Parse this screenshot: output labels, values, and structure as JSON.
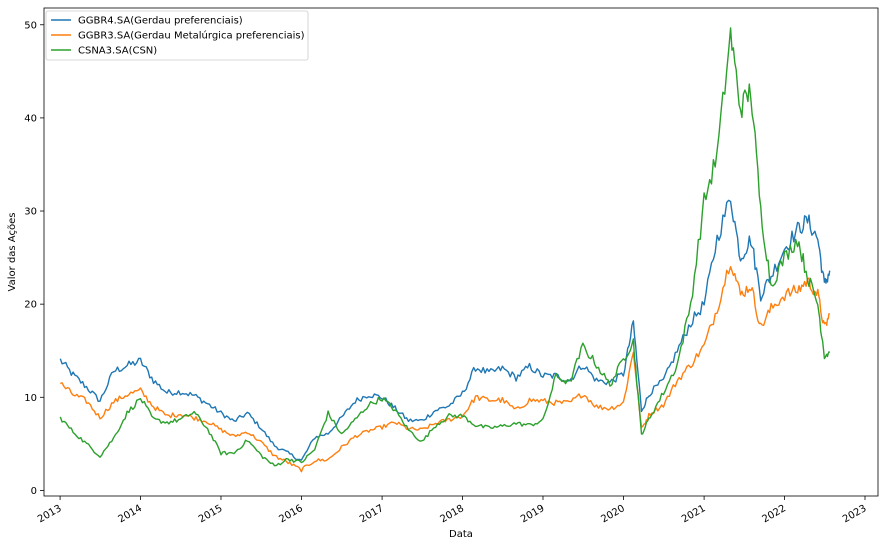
{
  "chart_data": {
    "type": "line",
    "xlabel": "Data",
    "ylabel": "Valor das Ações",
    "x_ticks": [
      "2013",
      "2014",
      "2015",
      "2016",
      "2017",
      "2018",
      "2019",
      "2020",
      "2021",
      "2022",
      "2023"
    ],
    "y_ticks": [
      0,
      10,
      20,
      30,
      40,
      50
    ],
    "xlim": [
      "2012-10-20",
      "2023-03-01"
    ],
    "ylim": [
      -0.6,
      51.8
    ],
    "legend_position": "top-left",
    "series": [
      {
        "name": "GGBR4.SA(Gerdau preferenciais)",
        "color": "#1f77b4",
        "x": [
          "2013-01-02",
          "2013-03-01",
          "2013-05-01",
          "2013-07-01",
          "2013-09-01",
          "2013-11-01",
          "2014-01-01",
          "2014-03-01",
          "2014-05-01",
          "2014-07-01",
          "2014-09-01",
          "2014-11-01",
          "2015-01-01",
          "2015-03-01",
          "2015-05-01",
          "2015-07-01",
          "2015-09-01",
          "2015-11-01",
          "2016-01-01",
          "2016-03-01",
          "2016-05-01",
          "2016-07-01",
          "2016-09-01",
          "2016-11-01",
          "2017-01-01",
          "2017-03-01",
          "2017-05-01",
          "2017-07-01",
          "2017-09-01",
          "2017-11-01",
          "2018-01-01",
          "2018-03-01",
          "2018-05-01",
          "2018-07-01",
          "2018-09-01",
          "2018-11-01",
          "2019-01-01",
          "2019-03-01",
          "2019-05-01",
          "2019-07-01",
          "2019-09-01",
          "2019-11-01",
          "2020-01-01",
          "2020-02-15",
          "2020-03-23",
          "2020-05-01",
          "2020-07-01",
          "2020-09-01",
          "2020-11-01",
          "2021-01-01",
          "2021-03-01",
          "2021-05-01",
          "2021-06-15",
          "2021-08-01",
          "2021-09-15",
          "2021-11-01",
          "2022-01-01",
          "2022-03-01",
          "2022-04-15",
          "2022-06-01",
          "2022-07-01",
          "2022-07-25"
        ],
        "y": [
          14.0,
          12.4,
          11.1,
          9.6,
          12.8,
          13.4,
          13.9,
          11.8,
          10.5,
          10.6,
          10.2,
          9.3,
          8.3,
          7.4,
          8.3,
          6.7,
          4.8,
          4.0,
          3.2,
          5.7,
          6.1,
          7.8,
          9.6,
          10.3,
          10.0,
          8.8,
          7.5,
          7.5,
          8.6,
          9.1,
          10.4,
          13.2,
          12.6,
          13.1,
          12.1,
          13.3,
          12.3,
          12.3,
          11.8,
          13.5,
          11.8,
          11.6,
          12.5,
          18.0,
          8.6,
          10.5,
          11.8,
          15.0,
          18.0,
          20.0,
          27.0,
          31.5,
          25.0,
          27.0,
          21.0,
          23.0,
          26.0,
          28.0,
          29.0,
          27.0,
          22.0,
          23.6
        ]
      },
      {
        "name": "GGBR3.SA(Gerdau Metalúrgica preferenciais)",
        "color": "#ff7f0e",
        "x": [
          "2013-01-02",
          "2013-03-01",
          "2013-05-01",
          "2013-07-01",
          "2013-09-01",
          "2013-11-01",
          "2014-01-01",
          "2014-03-01",
          "2014-05-01",
          "2014-07-01",
          "2014-09-01",
          "2014-11-01",
          "2015-01-01",
          "2015-03-01",
          "2015-05-01",
          "2015-07-01",
          "2015-09-01",
          "2015-11-01",
          "2016-01-01",
          "2016-03-01",
          "2016-05-01",
          "2016-07-01",
          "2016-09-01",
          "2016-11-01",
          "2017-01-01",
          "2017-03-01",
          "2017-05-01",
          "2017-07-01",
          "2017-09-01",
          "2017-11-01",
          "2018-01-01",
          "2018-03-01",
          "2018-05-01",
          "2018-07-01",
          "2018-09-01",
          "2018-11-01",
          "2019-01-01",
          "2019-03-01",
          "2019-05-01",
          "2019-07-01",
          "2019-09-01",
          "2019-11-01",
          "2020-01-01",
          "2020-02-15",
          "2020-03-23",
          "2020-05-01",
          "2020-07-01",
          "2020-09-01",
          "2020-11-01",
          "2021-01-01",
          "2021-03-01",
          "2021-05-01",
          "2021-06-15",
          "2021-08-01",
          "2021-09-15",
          "2021-11-01",
          "2022-01-01",
          "2022-03-01",
          "2022-04-15",
          "2022-06-01",
          "2022-07-01",
          "2022-07-25"
        ],
        "y": [
          11.5,
          10.3,
          9.6,
          7.8,
          9.5,
          10.3,
          10.7,
          9.0,
          8.0,
          8.2,
          7.8,
          7.4,
          6.5,
          5.8,
          6.3,
          5.2,
          3.7,
          3.0,
          2.2,
          3.2,
          3.3,
          4.6,
          5.8,
          6.4,
          6.8,
          7.3,
          6.6,
          6.5,
          7.2,
          7.6,
          8.0,
          10.0,
          9.7,
          9.7,
          8.6,
          9.7,
          9.6,
          9.4,
          9.4,
          10.4,
          9.0,
          8.8,
          9.4,
          15.0,
          6.6,
          8.3,
          9.2,
          11.8,
          13.5,
          15.5,
          19.5,
          24.8,
          21.0,
          22.0,
          17.5,
          19.5,
          21.0,
          21.5,
          22.5,
          21.0,
          17.4,
          18.9
        ]
      },
      {
        "name": "CSNA3.SA(CSN)",
        "color": "#2ca02c",
        "x": [
          "2013-01-02",
          "2013-03-01",
          "2013-05-01",
          "2013-07-01",
          "2013-09-01",
          "2013-11-01",
          "2014-01-01",
          "2014-03-01",
          "2014-05-01",
          "2014-07-01",
          "2014-09-01",
          "2014-11-01",
          "2015-01-01",
          "2015-03-01",
          "2015-05-01",
          "2015-07-01",
          "2015-09-01",
          "2015-11-01",
          "2016-01-01",
          "2016-03-01",
          "2016-05-01",
          "2016-07-01",
          "2016-09-01",
          "2016-11-01",
          "2017-01-01",
          "2017-03-01",
          "2017-05-01",
          "2017-07-01",
          "2017-09-01",
          "2017-11-01",
          "2018-01-01",
          "2018-03-01",
          "2018-05-01",
          "2018-07-01",
          "2018-09-01",
          "2018-11-01",
          "2019-01-01",
          "2019-03-01",
          "2019-05-01",
          "2019-07-01",
          "2019-09-01",
          "2019-11-01",
          "2020-01-01",
          "2020-02-15",
          "2020-03-23",
          "2020-05-01",
          "2020-07-01",
          "2020-09-01",
          "2020-11-01",
          "2021-01-01",
          "2021-03-01",
          "2021-05-01",
          "2021-06-15",
          "2021-08-01",
          "2021-09-15",
          "2021-11-01",
          "2022-01-01",
          "2022-03-01",
          "2022-04-15",
          "2022-06-01",
          "2022-07-01",
          "2022-07-25"
        ],
        "y": [
          7.8,
          6.3,
          5.0,
          3.7,
          5.6,
          8.3,
          9.9,
          7.6,
          7.3,
          7.6,
          8.4,
          6.6,
          4.0,
          4.0,
          5.4,
          3.8,
          2.6,
          3.4,
          3.0,
          4.4,
          8.3,
          6.0,
          7.6,
          9.2,
          9.9,
          8.6,
          6.5,
          5.2,
          7.0,
          8.0,
          8.0,
          7.0,
          6.7,
          6.9,
          7.2,
          7.0,
          7.5,
          12.3,
          11.5,
          15.5,
          13.5,
          11.3,
          14.1,
          16.0,
          6.0,
          7.9,
          10.5,
          13.5,
          20.0,
          31.0,
          36.0,
          49.0,
          41.0,
          43.0,
          30.0,
          22.0,
          25.0,
          27.0,
          23.0,
          20.0,
          14.5,
          14.8
        ]
      }
    ]
  }
}
